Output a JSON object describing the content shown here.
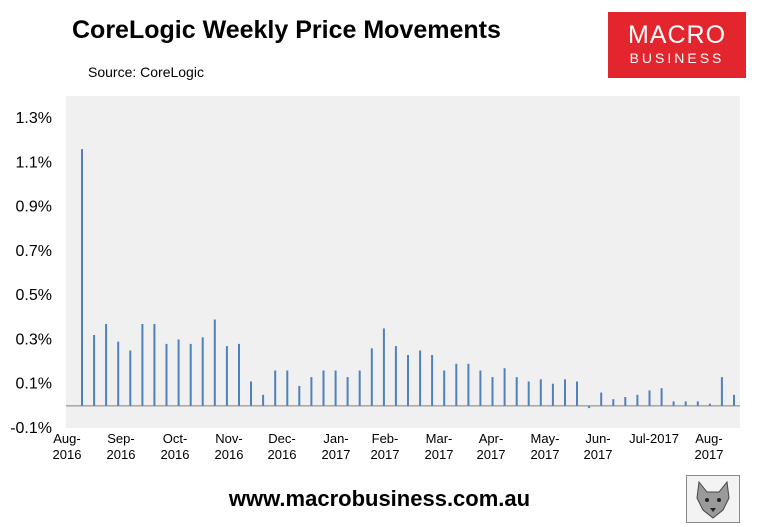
{
  "header": {
    "title": "CoreLogic Weekly Price Movements",
    "source": "Source: CoreLogic"
  },
  "logo": {
    "line1": "MACRO",
    "line2": "BUSINESS"
  },
  "footer": {
    "url": "www.macrobusiness.com.au"
  },
  "emblem": {
    "icon": "wolf-head-icon"
  },
  "colors": {
    "bar": "#4f81bd",
    "plot_bg": "#f0f0f0",
    "logo_bg": "#e3262d"
  },
  "chart_data": {
    "type": "bar",
    "title": "CoreLogic Weekly Price Movements",
    "xlabel": "",
    "ylabel": "",
    "ylim": [
      -0.1,
      1.4
    ],
    "yticks": [
      -0.1,
      0.1,
      0.3,
      0.5,
      0.7,
      0.9,
      1.1,
      1.3
    ],
    "ytick_labels": [
      "-0.1%",
      "0.1%",
      "0.3%",
      "0.5%",
      "0.7%",
      "0.9%",
      "1.1%",
      "1.3%"
    ],
    "grid": false,
    "legend": "none",
    "x_tick_labels": [
      {
        "month": "Aug-",
        "year": "2016"
      },
      {
        "month": "Sep-",
        "year": "2016"
      },
      {
        "month": "Oct-",
        "year": "2016"
      },
      {
        "month": "Nov-",
        "year": "2016"
      },
      {
        "month": "Dec-",
        "year": "2016"
      },
      {
        "month": "Jan-",
        "year": "2017"
      },
      {
        "month": "Feb-",
        "year": "2017"
      },
      {
        "month": "Mar-",
        "year": "2017"
      },
      {
        "month": "Apr-",
        "year": "2017"
      },
      {
        "month": "May-",
        "year": "2017"
      },
      {
        "month": "Jun-",
        "year": "2017"
      },
      {
        "month": "Jul-2017",
        "year": ""
      },
      {
        "month": "Aug-",
        "year": "2017"
      }
    ],
    "values": [
      1.16,
      0.32,
      0.37,
      0.29,
      0.25,
      0.37,
      0.37,
      0.28,
      0.3,
      0.28,
      0.31,
      0.39,
      0.27,
      0.28,
      0.11,
      0.05,
      0.16,
      0.16,
      0.09,
      0.13,
      0.16,
      0.16,
      0.13,
      0.16,
      0.26,
      0.35,
      0.27,
      0.23,
      0.25,
      0.23,
      0.16,
      0.19,
      0.19,
      0.16,
      0.13,
      0.17,
      0.13,
      0.11,
      0.12,
      0.1,
      0.12,
      0.11,
      -0.01,
      0.06,
      0.03,
      0.04,
      0.05,
      0.07,
      0.08,
      0.02,
      0.02,
      0.02,
      0.01,
      0.13,
      0.05
    ]
  }
}
